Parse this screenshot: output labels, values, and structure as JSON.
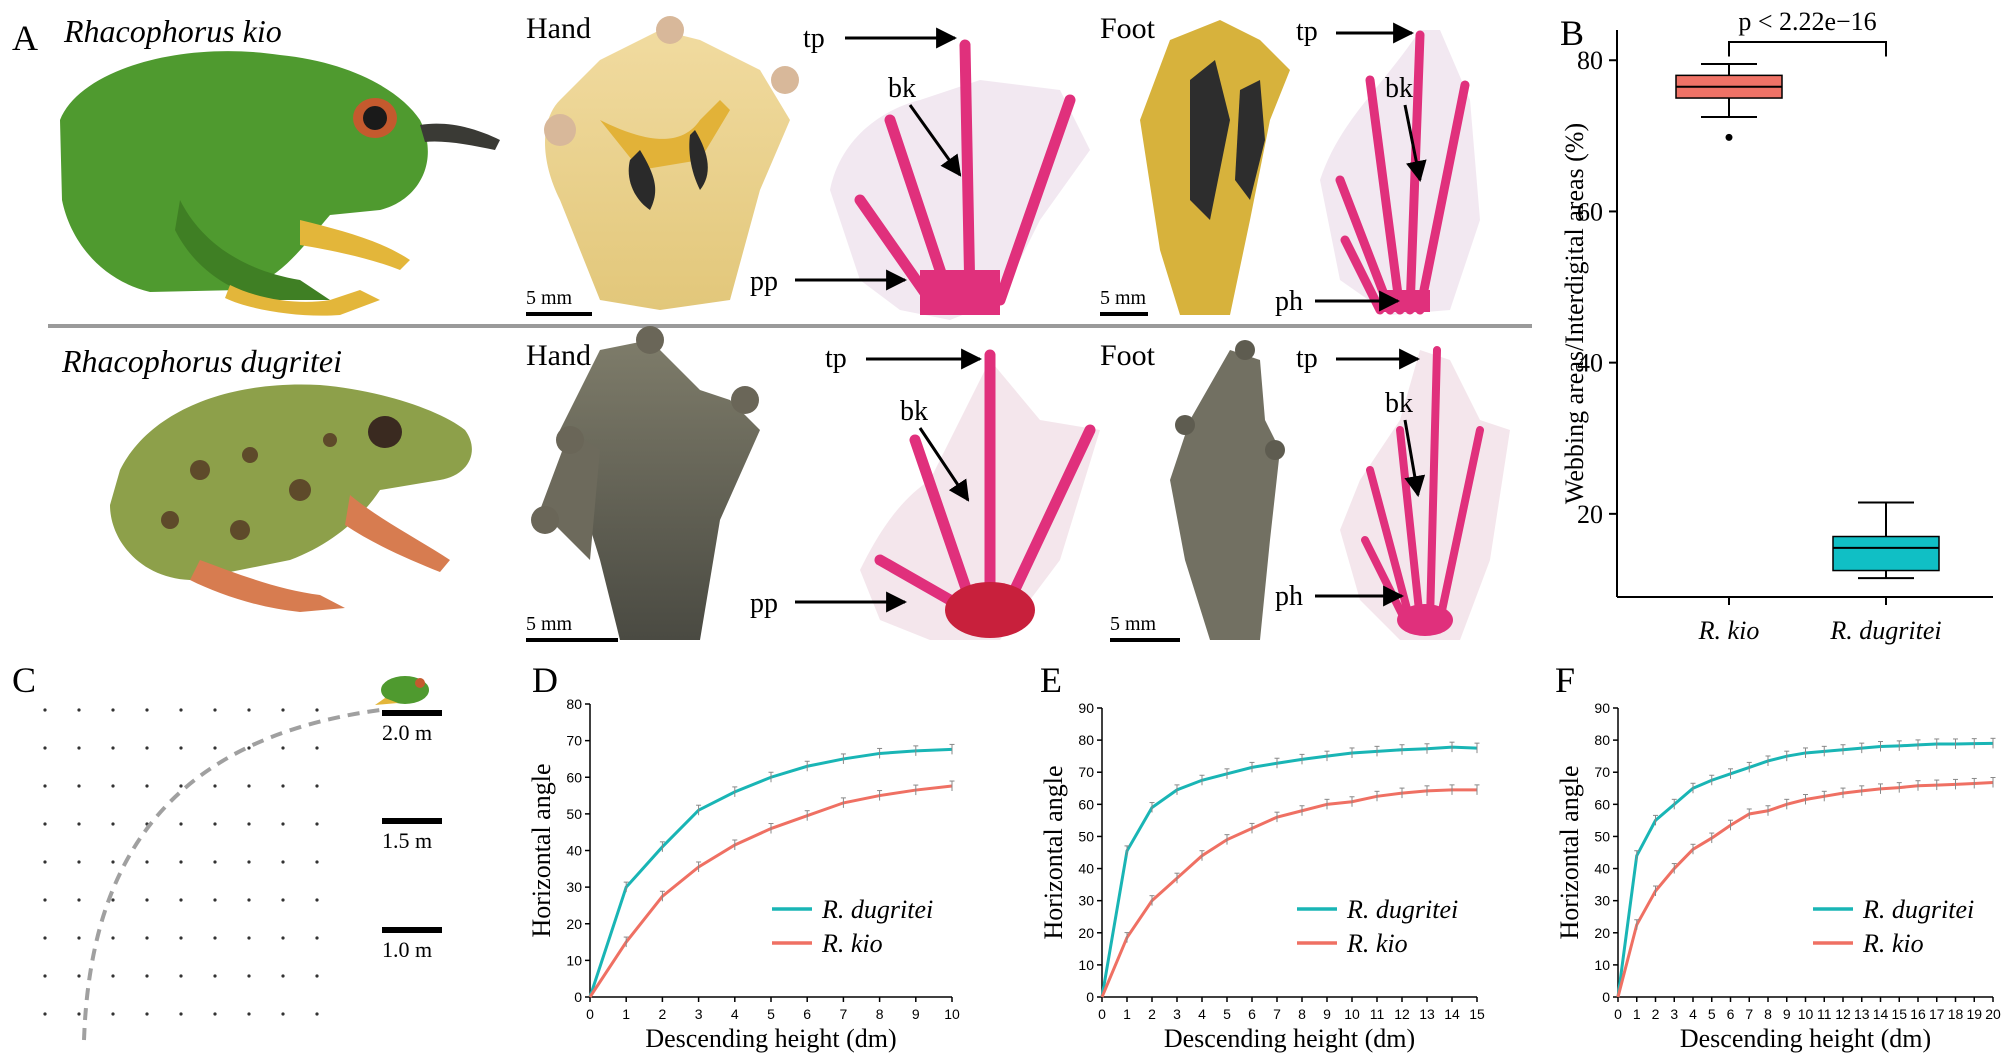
{
  "panel_letters": {
    "a": "A",
    "b": "B",
    "c": "C",
    "d": "D",
    "e": "E",
    "f": "F"
  },
  "species": {
    "kio": "Rhacophorus kio",
    "dugritei": "Rhacophorus dugritei"
  },
  "photo_labels": {
    "hand": "Hand",
    "foot": "Foot",
    "scale": "5 mm"
  },
  "bone_labels": {
    "tp": "tp",
    "bk": "bk",
    "pp": "pp",
    "ph": "ph"
  },
  "colors": {
    "kio_skin": "#4f9a2f",
    "dugritei_skin": "#8da04a",
    "webbing_yellow": "#d7b23c",
    "cleared_bone": "#e0307c",
    "teal": "#19b5b5",
    "salmon": "#ef7063",
    "box_kio": "#ef7266",
    "box_dugritei": "#10bfc5"
  },
  "glide_diagram": {
    "scale_bars": [
      "2.0 m",
      "1.5 m",
      "1.0 m"
    ]
  },
  "chart_data": [
    {
      "panel": "B",
      "type": "box",
      "categories": [
        "R. kio",
        "R. dugritei"
      ],
      "ylabel": "Webbing areas/Interdigital areas (%)",
      "yticks": [
        20,
        40,
        60,
        80
      ],
      "ylim": [
        9,
        84
      ],
      "annotation": "p < 2.22e−16",
      "boxes": [
        {
          "category": "R. kio",
          "whisker_low": 72.5,
          "q1": 75,
          "median": 76.5,
          "q3": 78,
          "whisker_high": 79.5,
          "outliers": [
            69.8
          ]
        },
        {
          "category": "R. dugritei",
          "whisker_low": 11.5,
          "q1": 12.5,
          "median": 15.5,
          "q3": 17,
          "whisker_high": 21.5,
          "outliers": []
        }
      ]
    },
    {
      "panel": "D",
      "type": "line",
      "xlabel": "Descending height (dm)",
      "ylabel": "Horizontal angle",
      "xlim": [
        0,
        10
      ],
      "ylim": [
        0,
        80
      ],
      "xticks": [
        0,
        1,
        2,
        3,
        4,
        5,
        6,
        7,
        8,
        9,
        10
      ],
      "yticks": [
        0,
        10,
        20,
        30,
        40,
        50,
        60,
        70,
        80
      ],
      "x": [
        0,
        1,
        2,
        3,
        4,
        5,
        6,
        7,
        8,
        9,
        10
      ],
      "series": [
        {
          "name": "R. dugritei",
          "values": [
            0,
            30,
            41,
            51,
            56,
            60,
            63,
            65,
            66.5,
            67.2,
            67.6
          ]
        },
        {
          "name": "R. kio",
          "values": [
            0,
            15,
            27.5,
            35.5,
            41.5,
            46,
            49.5,
            53,
            55,
            56.5,
            57.6
          ]
        }
      ]
    },
    {
      "panel": "E",
      "type": "line",
      "xlabel": "Descending height (dm)",
      "ylabel": "Horizontal angle",
      "xlim": [
        0,
        15
      ],
      "ylim": [
        0,
        90
      ],
      "xticks": [
        0,
        1,
        2,
        3,
        4,
        5,
        6,
        7,
        8,
        9,
        10,
        11,
        12,
        13,
        14,
        15
      ],
      "yticks": [
        0,
        10,
        20,
        30,
        40,
        50,
        60,
        70,
        80,
        90
      ],
      "x": [
        0,
        1,
        2,
        3,
        4,
        5,
        6,
        7,
        8,
        9,
        10,
        11,
        12,
        13,
        14,
        15
      ],
      "series": [
        {
          "name": "R. dugritei",
          "values": [
            0,
            45.5,
            59,
            64.5,
            67.5,
            69.5,
            71.5,
            72.8,
            74,
            75,
            76,
            76.5,
            77,
            77.3,
            77.8,
            77.5
          ]
        },
        {
          "name": "R. kio",
          "values": [
            0,
            18.5,
            30,
            37,
            44,
            49,
            52.5,
            56,
            58,
            60,
            60.8,
            62.5,
            63.5,
            64.2,
            64.5,
            64.5
          ]
        }
      ]
    },
    {
      "panel": "F",
      "type": "line",
      "xlabel": "Descending height (dm)",
      "ylabel": "Horizontal angle",
      "xlim": [
        0,
        20
      ],
      "ylim": [
        0,
        90
      ],
      "xticks": [
        0,
        1,
        2,
        3,
        4,
        5,
        6,
        7,
        8,
        9,
        10,
        11,
        12,
        13,
        14,
        15,
        16,
        17,
        18,
        19,
        20
      ],
      "yticks": [
        0,
        10,
        20,
        30,
        40,
        50,
        60,
        70,
        80,
        90
      ],
      "x": [
        0,
        1,
        2,
        3,
        4,
        5,
        6,
        7,
        8,
        9,
        10,
        11,
        12,
        13,
        14,
        15,
        16,
        17,
        18,
        19,
        20
      ],
      "series": [
        {
          "name": "R. dugritei",
          "values": [
            0,
            44,
            55,
            60,
            65,
            67.5,
            69.5,
            71.5,
            73.5,
            75,
            76,
            76.5,
            77,
            77.5,
            78,
            78.2,
            78.5,
            78.8,
            78.8,
            78.9,
            79
          ]
        },
        {
          "name": "R. kio",
          "values": [
            0,
            22.5,
            33,
            40,
            46,
            49.5,
            53.5,
            57,
            58,
            60,
            61.5,
            62.5,
            63.5,
            64.2,
            64.8,
            65.2,
            65.8,
            66,
            66.2,
            66.5,
            66.8
          ]
        }
      ]
    }
  ]
}
